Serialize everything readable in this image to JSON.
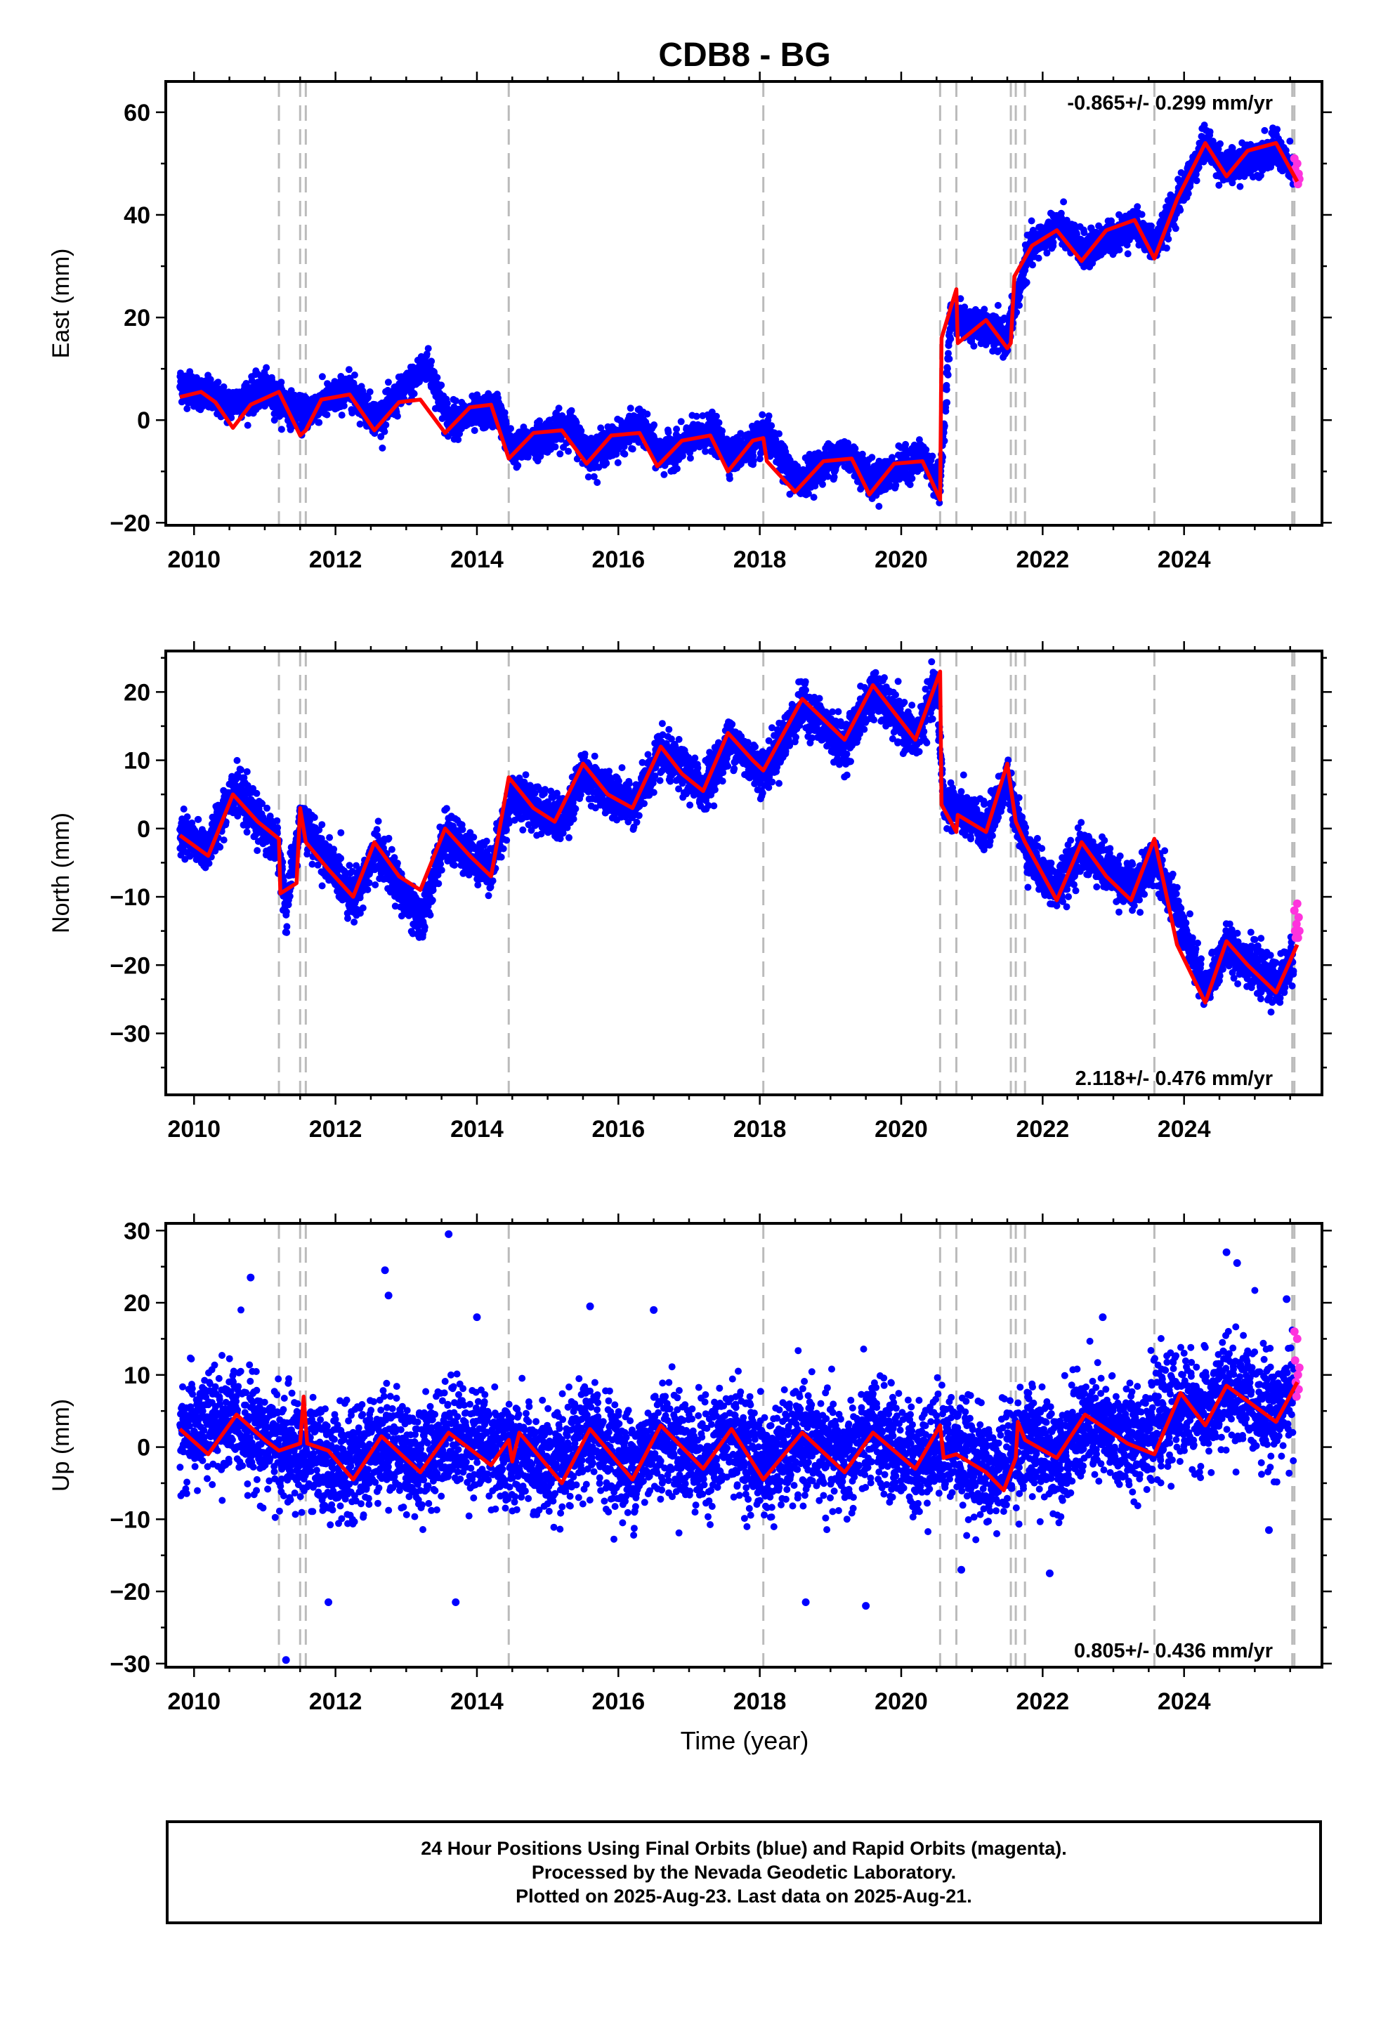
{
  "title": "CDB8 - BG",
  "xlabel": "Time (year)",
  "colors": {
    "final_points": "#0000ff",
    "rapid_points": "#ff33dd",
    "model_line": "#ff0000",
    "event_lines": "#bbbbbb"
  },
  "footer": {
    "line1": "24 Hour Positions Using Final Orbits (blue) and Rapid Orbits (magenta).",
    "line2": "Processed by the Nevada Geodetic Laboratory.",
    "line3": "Plotted on 2025-Aug-23. Last data on 2025-Aug-21."
  },
  "chart_data": [
    {
      "type": "scatter",
      "panel": "east",
      "ylabel": "East (mm)",
      "rate_label": "-0.865+/- 0.299 mm/yr",
      "rate_position": "top-right",
      "xlim": [
        2009.6,
        2025.95
      ],
      "ylim": [
        -20.5,
        66
      ],
      "xticks": [
        2010,
        2012,
        2014,
        2016,
        2018,
        2020,
        2022,
        2024
      ],
      "yticks": [
        -20,
        0,
        20,
        40,
        60
      ],
      "event_lines": [
        2011.2,
        2011.5,
        2011.58,
        2014.45,
        2018.05,
        2020.55,
        2020.78,
        2021.55,
        2021.62,
        2021.75,
        2023.58,
        2025.53,
        2025.56
      ],
      "model": [
        [
          2009.8,
          4.5
        ],
        [
          2010.1,
          5.5
        ],
        [
          2010.3,
          3.5
        ],
        [
          2010.55,
          -1.5
        ],
        [
          2010.8,
          3.0
        ],
        [
          2011.2,
          5.5
        ],
        [
          2011.5,
          -3.0
        ],
        [
          2011.58,
          -2.0
        ],
        [
          2011.8,
          4.0
        ],
        [
          2012.2,
          5.0
        ],
        [
          2012.55,
          -2.0
        ],
        [
          2012.9,
          3.5
        ],
        [
          2013.2,
          4.0
        ],
        [
          2013.55,
          -2.5
        ],
        [
          2013.9,
          2.5
        ],
        [
          2014.2,
          3.0
        ],
        [
          2014.45,
          -7.5
        ],
        [
          2014.8,
          -2.5
        ],
        [
          2015.2,
          -2.0
        ],
        [
          2015.55,
          -8.5
        ],
        [
          2015.9,
          -3.0
        ],
        [
          2016.3,
          -2.5
        ],
        [
          2016.55,
          -9.0
        ],
        [
          2016.9,
          -4.0
        ],
        [
          2017.3,
          -3.0
        ],
        [
          2017.55,
          -10.0
        ],
        [
          2017.9,
          -4.0
        ],
        [
          2018.05,
          -3.5
        ],
        [
          2018.1,
          -8.0
        ],
        [
          2018.5,
          -14.0
        ],
        [
          2018.9,
          -8.0
        ],
        [
          2019.3,
          -7.5
        ],
        [
          2019.55,
          -14.5
        ],
        [
          2019.9,
          -8.5
        ],
        [
          2020.3,
          -8.0
        ],
        [
          2020.55,
          -15.5
        ],
        [
          2020.57,
          16.0
        ],
        [
          2020.78,
          25.5
        ],
        [
          2020.8,
          15.0
        ],
        [
          2021.2,
          19.5
        ],
        [
          2021.5,
          14.0
        ],
        [
          2021.55,
          15.0
        ],
        [
          2021.6,
          28.0
        ],
        [
          2021.85,
          34.0
        ],
        [
          2022.2,
          37.0
        ],
        [
          2022.55,
          31.0
        ],
        [
          2022.9,
          37.0
        ],
        [
          2023.3,
          39.0
        ],
        [
          2023.58,
          31.5
        ],
        [
          2023.9,
          43.0
        ],
        [
          2024.3,
          54.0
        ],
        [
          2024.6,
          47.5
        ],
        [
          2024.9,
          52.5
        ],
        [
          2025.3,
          54.0
        ],
        [
          2025.6,
          46.5
        ]
      ],
      "final_band": [
        [
          2009.8,
          7
        ],
        [
          2010.5,
          3
        ],
        [
          2011.0,
          6
        ],
        [
          2011.5,
          1
        ],
        [
          2012.2,
          6
        ],
        [
          2012.6,
          0
        ],
        [
          2013.3,
          11
        ],
        [
          2013.6,
          0
        ],
        [
          2014.3,
          2
        ],
        [
          2014.5,
          -6
        ],
        [
          2015.3,
          -1
        ],
        [
          2015.6,
          -7
        ],
        [
          2016.3,
          -1
        ],
        [
          2016.6,
          -7
        ],
        [
          2017.3,
          -2
        ],
        [
          2017.6,
          -7
        ],
        [
          2018.1,
          -3
        ],
        [
          2018.5,
          -12
        ],
        [
          2019.2,
          -6
        ],
        [
          2019.6,
          -12
        ],
        [
          2020.3,
          -7
        ],
        [
          2020.55,
          -13
        ],
        [
          2020.7,
          20
        ],
        [
          2021.5,
          16
        ],
        [
          2021.8,
          33
        ],
        [
          2022.2,
          38
        ],
        [
          2022.6,
          33
        ],
        [
          2023.3,
          38
        ],
        [
          2023.6,
          34
        ],
        [
          2024.3,
          54
        ],
        [
          2024.6,
          49
        ],
        [
          2025.3,
          53
        ],
        [
          2025.55,
          48
        ]
      ],
      "rapid": [
        [
          2025.56,
          51
        ],
        [
          2025.57,
          49
        ],
        [
          2025.58,
          48
        ],
        [
          2025.59,
          47
        ],
        [
          2025.6,
          50
        ],
        [
          2025.61,
          46
        ],
        [
          2025.62,
          48
        ],
        [
          2025.63,
          47
        ]
      ]
    },
    {
      "type": "scatter",
      "panel": "north",
      "ylabel": "North (mm)",
      "rate_label": "2.118+/- 0.476 mm/yr",
      "rate_position": "bottom-right",
      "xlim": [
        2009.6,
        2025.95
      ],
      "ylim": [
        -39,
        26
      ],
      "xticks": [
        2010,
        2012,
        2014,
        2016,
        2018,
        2020,
        2022,
        2024
      ],
      "yticks": [
        -30,
        -20,
        -10,
        0,
        10,
        20
      ],
      "event_lines": [
        2011.2,
        2011.5,
        2011.58,
        2014.45,
        2018.05,
        2020.55,
        2020.78,
        2021.55,
        2021.62,
        2021.75,
        2023.58,
        2025.53,
        2025.56
      ],
      "model": [
        [
          2009.8,
          -1.0
        ],
        [
          2010.2,
          -4.0
        ],
        [
          2010.55,
          5.0
        ],
        [
          2010.9,
          1.0
        ],
        [
          2011.2,
          -1.5
        ],
        [
          2011.22,
          -9.5
        ],
        [
          2011.45,
          -8.0
        ],
        [
          2011.5,
          3.0
        ],
        [
          2011.58,
          -2.0
        ],
        [
          2011.9,
          -6.0
        ],
        [
          2012.25,
          -10.0
        ],
        [
          2012.55,
          -2.0
        ],
        [
          2012.9,
          -7.0
        ],
        [
          2013.2,
          -9.0
        ],
        [
          2013.55,
          0.0
        ],
        [
          2013.9,
          -4.0
        ],
        [
          2014.2,
          -7.0
        ],
        [
          2014.45,
          7.5
        ],
        [
          2014.8,
          3.0
        ],
        [
          2015.1,
          1.0
        ],
        [
          2015.5,
          9.5
        ],
        [
          2015.85,
          5.0
        ],
        [
          2016.2,
          3.0
        ],
        [
          2016.6,
          12.0
        ],
        [
          2016.9,
          8.0
        ],
        [
          2017.2,
          5.5
        ],
        [
          2017.55,
          14.0
        ],
        [
          2017.9,
          10.0
        ],
        [
          2018.05,
          8.5
        ],
        [
          2018.6,
          19.0
        ],
        [
          2019.2,
          13.0
        ],
        [
          2019.6,
          21.0
        ],
        [
          2020.2,
          13.0
        ],
        [
          2020.55,
          23.0
        ],
        [
          2020.57,
          3.5
        ],
        [
          2020.78,
          -0.5
        ],
        [
          2020.8,
          2.0
        ],
        [
          2021.2,
          -0.5
        ],
        [
          2021.5,
          9.5
        ],
        [
          2021.62,
          1.0
        ],
        [
          2021.75,
          -2.0
        ],
        [
          2022.2,
          -10.5
        ],
        [
          2022.55,
          -2.0
        ],
        [
          2022.9,
          -7.0
        ],
        [
          2023.25,
          -10.5
        ],
        [
          2023.58,
          -1.5
        ],
        [
          2023.9,
          -17.0
        ],
        [
          2024.3,
          -25.5
        ],
        [
          2024.6,
          -16.5
        ],
        [
          2024.9,
          -20.0
        ],
        [
          2025.3,
          -24.0
        ],
        [
          2025.6,
          -17.0
        ]
      ],
      "final_band": [
        [
          2009.8,
          -1
        ],
        [
          2010.2,
          -3
        ],
        [
          2010.55,
          6
        ],
        [
          2011.2,
          -3
        ],
        [
          2011.3,
          -12
        ],
        [
          2011.5,
          1
        ],
        [
          2012.25,
          -10
        ],
        [
          2012.6,
          -3
        ],
        [
          2013.2,
          -14
        ],
        [
          2013.55,
          -1
        ],
        [
          2014.2,
          -6
        ],
        [
          2014.5,
          5
        ],
        [
          2015.2,
          1
        ],
        [
          2015.5,
          8
        ],
        [
          2016.2,
          3
        ],
        [
          2016.6,
          11
        ],
        [
          2017.2,
          6
        ],
        [
          2017.6,
          13
        ],
        [
          2018.05,
          8
        ],
        [
          2018.6,
          18
        ],
        [
          2019.2,
          12
        ],
        [
          2019.6,
          20
        ],
        [
          2020.2,
          13
        ],
        [
          2020.5,
          21
        ],
        [
          2020.6,
          4
        ],
        [
          2021.2,
          0
        ],
        [
          2021.5,
          7
        ],
        [
          2021.8,
          -4
        ],
        [
          2022.2,
          -9
        ],
        [
          2022.55,
          -3
        ],
        [
          2023.3,
          -9
        ],
        [
          2023.6,
          -4
        ],
        [
          2024.3,
          -24
        ],
        [
          2024.6,
          -17
        ],
        [
          2025.3,
          -23
        ],
        [
          2025.55,
          -19
        ]
      ],
      "rapid": [
        [
          2025.56,
          -12
        ],
        [
          2025.57,
          -15
        ],
        [
          2025.58,
          -16
        ],
        [
          2025.59,
          -14
        ],
        [
          2025.6,
          -11
        ],
        [
          2025.61,
          -16
        ],
        [
          2025.62,
          -13
        ],
        [
          2025.63,
          -15
        ]
      ]
    },
    {
      "type": "scatter",
      "panel": "up",
      "ylabel": "Up (mm)",
      "rate_label": "0.805+/- 0.436 mm/yr",
      "rate_position": "bottom-right",
      "xlim": [
        2009.6,
        2025.95
      ],
      "ylim": [
        -30.5,
        31
      ],
      "xticks": [
        2010,
        2012,
        2014,
        2016,
        2018,
        2020,
        2022,
        2024
      ],
      "yticks": [
        -30,
        -20,
        -10,
        0,
        10,
        20,
        30
      ],
      "event_lines": [
        2011.2,
        2011.5,
        2011.58,
        2014.45,
        2018.05,
        2020.55,
        2020.78,
        2021.55,
        2021.62,
        2021.75,
        2023.58,
        2025.53,
        2025.56
      ],
      "model": [
        [
          2009.8,
          2.5
        ],
        [
          2010.2,
          -1.0
        ],
        [
          2010.6,
          4.5
        ],
        [
          2011.0,
          1.0
        ],
        [
          2011.2,
          -0.5
        ],
        [
          2011.5,
          0.5
        ],
        [
          2011.55,
          7.0
        ],
        [
          2011.6,
          0.5
        ],
        [
          2011.9,
          -0.5
        ],
        [
          2012.25,
          -4.5
        ],
        [
          2012.65,
          1.5
        ],
        [
          2013.2,
          -3.5
        ],
        [
          2013.6,
          2.0
        ],
        [
          2014.2,
          -2.5
        ],
        [
          2014.45,
          1.0
        ],
        [
          2014.5,
          -2.0
        ],
        [
          2014.6,
          2.0
        ],
        [
          2015.2,
          -5.0
        ],
        [
          2015.6,
          2.5
        ],
        [
          2016.2,
          -4.5
        ],
        [
          2016.6,
          3.0
        ],
        [
          2017.2,
          -3.0
        ],
        [
          2017.6,
          2.5
        ],
        [
          2018.05,
          -4.5
        ],
        [
          2018.6,
          2.0
        ],
        [
          2019.2,
          -3.5
        ],
        [
          2019.6,
          2.0
        ],
        [
          2020.2,
          -3.0
        ],
        [
          2020.55,
          3.0
        ],
        [
          2020.6,
          -1.5
        ],
        [
          2020.78,
          -1.0
        ],
        [
          2021.2,
          -3.5
        ],
        [
          2021.45,
          -6.0
        ],
        [
          2021.62,
          -1.5
        ],
        [
          2021.65,
          3.5
        ],
        [
          2021.75,
          1.0
        ],
        [
          2022.2,
          -1.5
        ],
        [
          2022.6,
          4.5
        ],
        [
          2023.2,
          0.5
        ],
        [
          2023.58,
          -1.0
        ],
        [
          2023.95,
          7.5
        ],
        [
          2024.3,
          3.0
        ],
        [
          2024.6,
          8.5
        ],
        [
          2025.3,
          3.5
        ],
        [
          2025.6,
          9.0
        ]
      ],
      "final_band": [
        [
          2009.8,
          2
        ],
        [
          2010.6,
          4
        ],
        [
          2011.2,
          0
        ],
        [
          2012.25,
          -3
        ],
        [
          2012.65,
          1
        ],
        [
          2013.2,
          -2
        ],
        [
          2013.6,
          2
        ],
        [
          2014.5,
          -1
        ],
        [
          2015.2,
          -3
        ],
        [
          2015.6,
          2
        ],
        [
          2016.2,
          -3
        ],
        [
          2016.6,
          2
        ],
        [
          2017.2,
          -2
        ],
        [
          2017.6,
          2
        ],
        [
          2018.1,
          -3
        ],
        [
          2018.6,
          1
        ],
        [
          2019.2,
          -2
        ],
        [
          2019.6,
          2
        ],
        [
          2020.2,
          -2
        ],
        [
          2020.6,
          1
        ],
        [
          2021.3,
          -4
        ],
        [
          2021.7,
          1
        ],
        [
          2022.2,
          -1
        ],
        [
          2022.6,
          3
        ],
        [
          2023.2,
          1
        ],
        [
          2023.6,
          3
        ],
        [
          2024.0,
          6
        ],
        [
          2024.3,
          4
        ],
        [
          2024.6,
          8
        ],
        [
          2025.3,
          5
        ],
        [
          2025.55,
          7
        ]
      ],
      "outliers": [
        [
          2010.8,
          23.5
        ],
        [
          2011.3,
          -29.5
        ],
        [
          2011.9,
          -21.5
        ],
        [
          2012.7,
          24.5
        ],
        [
          2012.75,
          21.0
        ],
        [
          2013.6,
          29.5
        ],
        [
          2013.7,
          -21.5
        ],
        [
          2014.0,
          18.0
        ],
        [
          2015.6,
          19.5
        ],
        [
          2016.5,
          19.0
        ],
        [
          2018.65,
          -21.5
        ],
        [
          2019.5,
          -22.0
        ],
        [
          2020.85,
          -17.0
        ],
        [
          2022.1,
          -17.5
        ],
        [
          2022.85,
          18.0
        ],
        [
          2024.6,
          27.0
        ],
        [
          2024.75,
          25.5
        ],
        [
          2025.45,
          20.5
        ],
        [
          2025.2,
          -11.5
        ]
      ],
      "rapid": [
        [
          2025.56,
          16
        ],
        [
          2025.57,
          12
        ],
        [
          2025.58,
          9
        ],
        [
          2025.59,
          7
        ],
        [
          2025.6,
          15
        ],
        [
          2025.61,
          10
        ],
        [
          2025.62,
          8
        ],
        [
          2025.63,
          11
        ]
      ]
    }
  ]
}
